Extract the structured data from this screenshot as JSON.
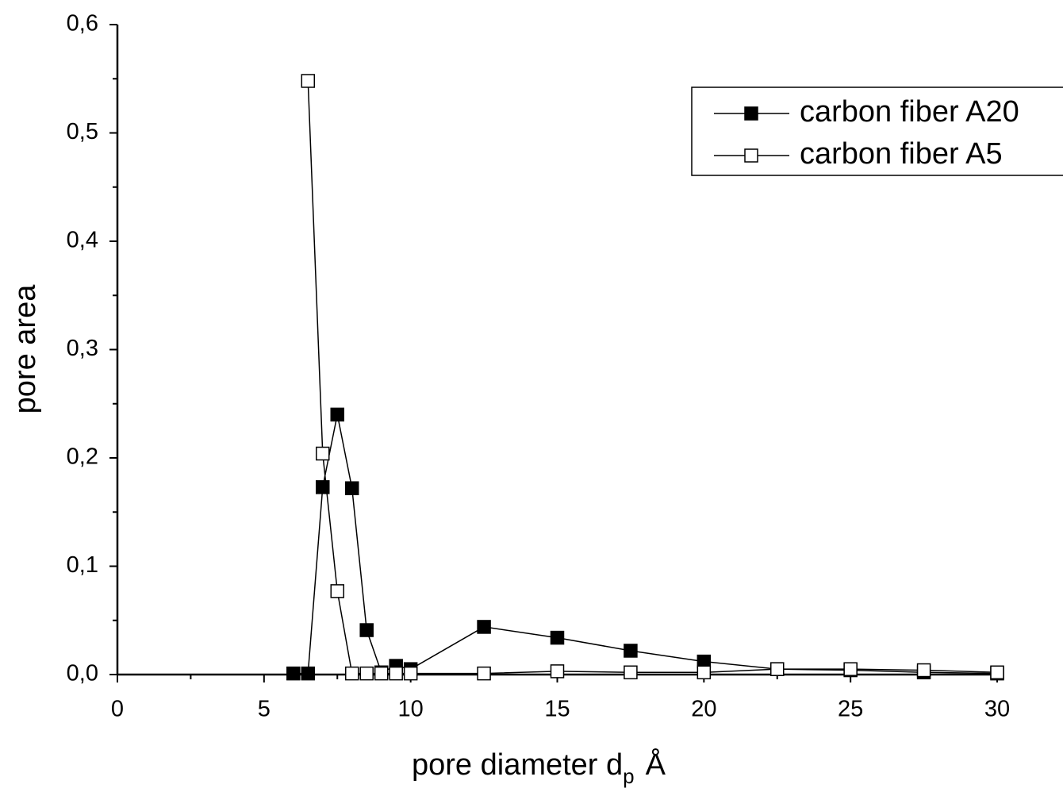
{
  "chart_data": {
    "type": "line",
    "x_label": "pore diameter d",
    "x_label_sub": "p",
    "x_label_unit": "Å",
    "y_label": "pore area",
    "xlim": [
      0,
      30
    ],
    "xticks": [
      0,
      5,
      10,
      15,
      20,
      25,
      30
    ],
    "xminorticks": [
      2.5,
      7.5,
      12.5,
      17.5,
      22.5,
      27.5
    ],
    "ylim": [
      0,
      0.6
    ],
    "yticks": [
      {
        "value": 0,
        "label": "0,0"
      },
      {
        "value": 0.1,
        "label": "0,1"
      },
      {
        "value": 0.2,
        "label": "0,2"
      },
      {
        "value": 0.3,
        "label": "0,3"
      },
      {
        "value": 0.4,
        "label": "0,4"
      },
      {
        "value": 0.5,
        "label": "0,5"
      },
      {
        "value": 0.6,
        "label": "0,6"
      }
    ],
    "yminorticks": [
      0.05,
      0.15,
      0.25,
      0.35,
      0.45,
      0.55
    ],
    "legend": "top-right",
    "series": [
      {
        "name": "carbon fiber A20",
        "color": "#000000",
        "marker": "filled-square",
        "x": [
          6,
          6.5,
          7,
          7.5,
          8,
          8.5,
          9,
          9.5,
          10,
          12.5,
          15,
          17.5,
          20,
          22.5,
          25,
          27.5,
          30
        ],
        "values": [
          0.001,
          0.001,
          0.173,
          0.24,
          0.172,
          0.041,
          0.002,
          0.008,
          0.005,
          0.044,
          0.034,
          0.022,
          0.012,
          0.005,
          0.004,
          0.002,
          0.001
        ]
      },
      {
        "name": "carbon fiber A5",
        "color": "#000000",
        "marker": "open-square",
        "x": [
          6.5,
          7,
          7.5,
          8,
          8.5,
          9,
          9.5,
          10,
          12.5,
          15,
          17.5,
          20,
          22.5,
          25,
          27.5,
          30
        ],
        "values": [
          0.548,
          0.204,
          0.077,
          0.001,
          0.001,
          0.001,
          0.001,
          0.001,
          0.001,
          0.003,
          0.002,
          0.002,
          0.005,
          0.005,
          0.004,
          0.002
        ]
      }
    ]
  }
}
